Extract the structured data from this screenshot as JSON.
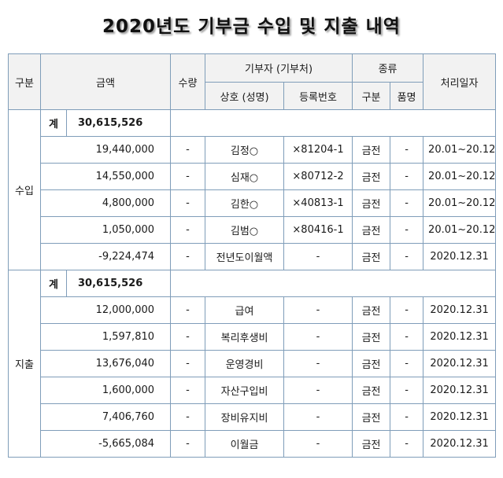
{
  "title": "2020년도  기부금 수입 및 지출 내역",
  "headers": {
    "category": "구분",
    "amount": "금액",
    "quantity": "수량",
    "donor": "기부자 (기부처)",
    "donor_name": "상호 (성명)",
    "donor_reg": "등록번호",
    "type": "종류",
    "type_category": "구분",
    "type_item": "품명",
    "processed_date": "처리일자"
  },
  "income": {
    "label": "수입",
    "total_label": "계",
    "total_value": "30,615,526",
    "rows": [
      {
        "amount": "19,440,000",
        "quantity": "-",
        "name": "김정○",
        "reg": "×81204-1",
        "type": "금전",
        "item": "-",
        "date": "20.01~20.12"
      },
      {
        "amount": "14,550,000",
        "quantity": "-",
        "name": "심재○",
        "reg": "×80712-2",
        "type": "금전",
        "item": "-",
        "date": "20.01~20.12"
      },
      {
        "amount": "4,800,000",
        "quantity": "-",
        "name": "김한○",
        "reg": "×40813-1",
        "type": "금전",
        "item": "-",
        "date": "20.01~20.12"
      },
      {
        "amount": "1,050,000",
        "quantity": "-",
        "name": "김범○",
        "reg": "×80416-1",
        "type": "금전",
        "item": "-",
        "date": "20.01~20.12"
      },
      {
        "amount": "-9,224,474",
        "quantity": "-",
        "name": "전년도이월액",
        "reg": "-",
        "type": "금전",
        "item": "-",
        "date": "2020.12.31"
      }
    ]
  },
  "expense": {
    "label": "지출",
    "total_label": "계",
    "total_value": "30,615,526",
    "rows": [
      {
        "amount": "12,000,000",
        "quantity": "-",
        "name": "급여",
        "reg": "-",
        "type": "금전",
        "item": "-",
        "date": "2020.12.31"
      },
      {
        "amount": "1,597,810",
        "quantity": "-",
        "name": "복리후생비",
        "reg": "-",
        "type": "금전",
        "item": "-",
        "date": "2020.12.31"
      },
      {
        "amount": "13,676,040",
        "quantity": "-",
        "name": "운영경비",
        "reg": "-",
        "type": "금전",
        "item": "-",
        "date": "2020.12.31"
      },
      {
        "amount": "1,600,000",
        "quantity": "-",
        "name": "자산구입비",
        "reg": "-",
        "type": "금전",
        "item": "-",
        "date": "2020.12.31"
      },
      {
        "amount": "7,406,760",
        "quantity": "-",
        "name": "장비유지비",
        "reg": "-",
        "type": "금전",
        "item": "-",
        "date": "2020.12.31"
      },
      {
        "amount": "-5,665,084",
        "quantity": "-",
        "name": "이월금",
        "reg": "-",
        "type": "금전",
        "item": "-",
        "date": "2020.12.31"
      }
    ]
  }
}
